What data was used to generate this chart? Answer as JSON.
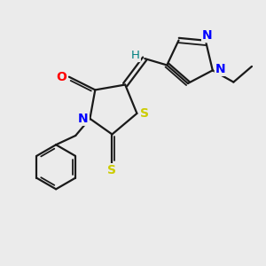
{
  "bg_color": "#ebebeb",
  "bond_color": "#1a1a1a",
  "atom_colors": {
    "O": "#ff0000",
    "N": "#0000ff",
    "S": "#cccc00",
    "H": "#008080",
    "C": "#1a1a1a"
  },
  "figsize": [
    3.0,
    3.0
  ],
  "dpi": 100
}
